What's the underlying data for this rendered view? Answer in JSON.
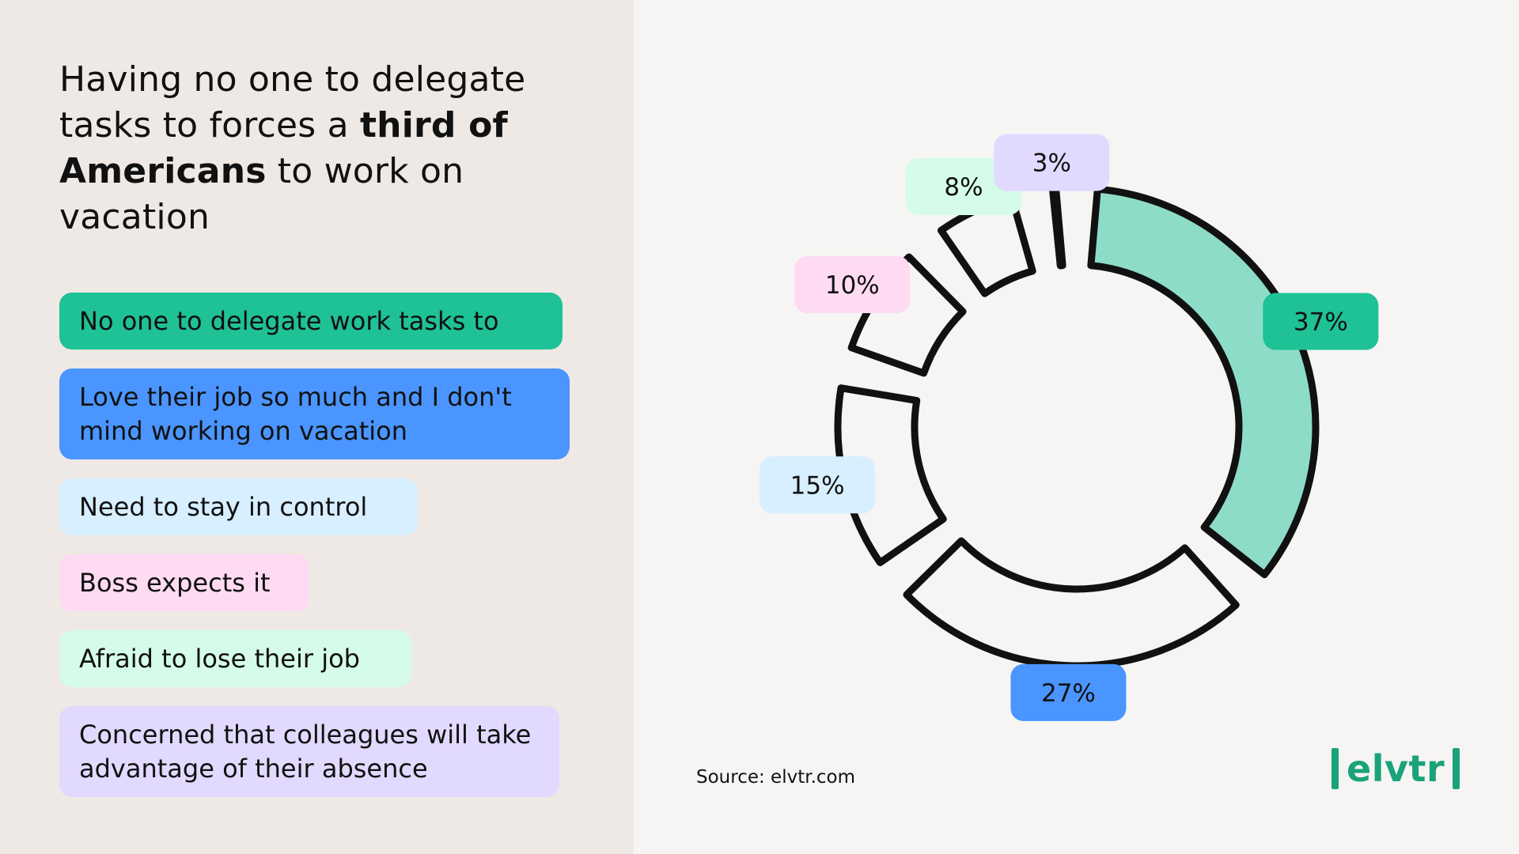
{
  "headline": {
    "part1": "Having no one to delegate tasks to forces a ",
    "bold1": "third of Americans",
    "part2": " to work on vacation"
  },
  "legend": [
    {
      "label": "No one to delegate work tasks to",
      "color": "#1fc196"
    },
    {
      "label": "Love their job so much and I don't mind working on vacation",
      "color": "#4a95ff"
    },
    {
      "label": "Need to stay in control",
      "color": "#d7efff"
    },
    {
      "label": "Boss expects it",
      "color": "#ffdaf3"
    },
    {
      "label": "Afraid to lose their job",
      "color": "#d5fbe9"
    },
    {
      "label": "Concerned that colleagues will take advantage of their absence",
      "color": "#e2d9ff"
    }
  ],
  "source": "Source: elvtr.com",
  "logo": "elvtr",
  "chart_data": {
    "type": "pie",
    "style": "donut",
    "categories": [
      "No one to delegate work tasks to",
      "Love their job so much and I don't mind working on vacation",
      "Need to stay in control",
      "Boss expects it",
      "Afraid to lose their job",
      "Concerned that colleagues will take advantage of their absence"
    ],
    "values": [
      37,
      27,
      15,
      10,
      8,
      3
    ],
    "value_labels": [
      "37%",
      "27%",
      "15%",
      "10%",
      "8%",
      "3%"
    ],
    "label_colors": [
      "#1fc196",
      "#4a95ff",
      "#d7efff",
      "#ffdaf3",
      "#d5fbe9",
      "#e2d9ff"
    ],
    "highlight_fill": "#8ddcc8",
    "highlighted_index": 0
  }
}
